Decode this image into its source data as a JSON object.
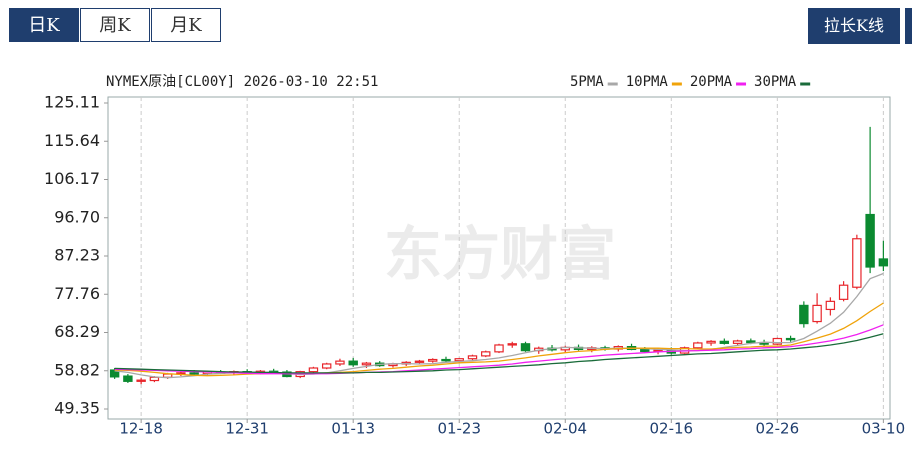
{
  "tabs": [
    "日K",
    "周K",
    "月K"
  ],
  "active_tab": 0,
  "button": "拉长K线",
  "chart_data": {
    "type": "candlestick",
    "title": "NYMEX原油[CL00Y] 2026-03-10 22:51",
    "watermark": "东方财富",
    "up_color": "#e8262b",
    "down_color": "#0b8a30",
    "ylim": [
      49.35,
      125.11
    ],
    "yticks": [
      49.35,
      58.82,
      68.29,
      77.76,
      87.23,
      {
        "value": 96.7,
        "label": "96.70"
      },
      106.17,
      115.64,
      125.11
    ],
    "categories": [
      null,
      null,
      "12-18",
      null,
      null,
      null,
      null,
      null,
      null,
      null,
      "12-31",
      null,
      null,
      null,
      null,
      null,
      null,
      null,
      "01-13",
      null,
      null,
      null,
      null,
      null,
      null,
      null,
      "01-23",
      null,
      null,
      null,
      null,
      null,
      null,
      null,
      "02-04",
      null,
      null,
      null,
      null,
      null,
      null,
      null,
      "02-16",
      null,
      null,
      null,
      null,
      null,
      null,
      null,
      "02-26",
      null,
      null,
      null,
      null,
      null,
      null,
      null,
      "03-10"
    ],
    "ohlc": [
      [
        59,
        59.5,
        56.8,
        57.3
      ],
      [
        57.5,
        58,
        55.8,
        56.2
      ],
      [
        56.2,
        57,
        55.5,
        56.5
      ],
      [
        56.4,
        57.5,
        56,
        57.2
      ],
      [
        57.2,
        58.3,
        56.8,
        58
      ],
      [
        58,
        58.6,
        57.5,
        58.3
      ],
      [
        58.3,
        59,
        57.8,
        58.1
      ],
      [
        58.1,
        58.8,
        57.6,
        58.5
      ],
      [
        58.5,
        59,
        58,
        58.3
      ],
      [
        58.3,
        58.9,
        57.8,
        58.6
      ],
      [
        58.6,
        59.2,
        58,
        58.4
      ],
      [
        58.4,
        59,
        57.9,
        58.7
      ],
      [
        58.7,
        59.3,
        58.2,
        58.5
      ],
      [
        58.5,
        59,
        57.2,
        57.4
      ],
      [
        57.4,
        58.8,
        57,
        58.6
      ],
      [
        58.6,
        59.8,
        58.2,
        59.5
      ],
      [
        59.5,
        60.8,
        59.2,
        60.5
      ],
      [
        60.5,
        61.8,
        60,
        61.2
      ],
      [
        61.2,
        62,
        59.8,
        60.3
      ],
      [
        60.3,
        61,
        59.5,
        60.7
      ],
      [
        60.7,
        61.2,
        59.8,
        60.1
      ],
      [
        60.1,
        60.8,
        59.6,
        60.5
      ],
      [
        60.5,
        61.2,
        60,
        60.9
      ],
      [
        60.9,
        61.5,
        60.4,
        61.2
      ],
      [
        61.2,
        61.9,
        60.8,
        61.6
      ],
      [
        61.6,
        62.3,
        61,
        61.3
      ],
      [
        61.3,
        62,
        60.9,
        61.8
      ],
      [
        61.8,
        62.8,
        61.4,
        62.5
      ],
      [
        62.5,
        63.8,
        62.2,
        63.5
      ],
      [
        63.5,
        65.5,
        63.2,
        65.2
      ],
      [
        65.2,
        66,
        64.5,
        65.5
      ],
      [
        65.5,
        66,
        63.5,
        63.8
      ],
      [
        63.8,
        64.8,
        63,
        64.4
      ],
      [
        64.4,
        65.2,
        63.6,
        64
      ],
      [
        64,
        65,
        63.2,
        64.6
      ],
      [
        64.6,
        65.3,
        63.8,
        64.1
      ],
      [
        64.1,
        64.9,
        63.4,
        64.5
      ],
      [
        64.5,
        65,
        63.8,
        64.2
      ],
      [
        64.2,
        65.1,
        63.6,
        64.8
      ],
      [
        64.8,
        65.5,
        63.9,
        64.1
      ],
      [
        64.1,
        64.7,
        63.2,
        63.6
      ],
      [
        63.6,
        64.3,
        62.9,
        63.9
      ],
      [
        63.9,
        64.6,
        62.8,
        63.2
      ],
      [
        63.2,
        64.8,
        63,
        64.5
      ],
      [
        64.5,
        66,
        64.2,
        65.7
      ],
      [
        65.7,
        66.4,
        65,
        66.1
      ],
      [
        66.1,
        66.8,
        65.3,
        65.6
      ],
      [
        65.6,
        66.5,
        65,
        66.2
      ],
      [
        66.2,
        66.8,
        65.4,
        65.8
      ],
      [
        65.8,
        66.5,
        65,
        65.4
      ],
      [
        65.4,
        67,
        65.2,
        66.8
      ],
      [
        66.8,
        67.5,
        66,
        66.5
      ],
      [
        75,
        76,
        69.5,
        70.5
      ],
      [
        71,
        78,
        70.5,
        75
      ],
      [
        74,
        77,
        72.5,
        76
      ],
      [
        76.5,
        81,
        76,
        80
      ],
      [
        79.5,
        92.5,
        79,
        91.5
      ],
      [
        97.5,
        119.2,
        83,
        84.5
      ],
      [
        86.5,
        91,
        83.5,
        84.8
      ]
    ],
    "series": [
      {
        "name": "5PMA",
        "color": "#a8a8a8",
        "values": [
          58.8,
          58.4,
          57.8,
          57.3,
          57.1,
          57.3,
          57.6,
          58,
          58.2,
          58.3,
          58.4,
          58.4,
          58.4,
          58.1,
          57.9,
          58,
          58.3,
          58.8,
          59.4,
          59.9,
          60.4,
          60.6,
          60.6,
          60.5,
          60.6,
          60.9,
          61.1,
          61.3,
          61.6,
          62,
          62.6,
          63.3,
          63.9,
          64.3,
          64.6,
          64.5,
          64.4,
          64.3,
          64.4,
          64.4,
          64.3,
          64.1,
          64,
          63.8,
          63.8,
          64.1,
          64.6,
          65.1,
          65.6,
          65.9,
          65.8,
          65.8,
          66.8,
          68.6,
          70.6,
          73.3,
          77.2,
          81.6,
          82.9
        ]
      },
      {
        "name": "10PMA",
        "color": "#f0a30a",
        "values": [
          59,
          58.9,
          58.7,
          58.4,
          58.1,
          57.9,
          57.7,
          57.6,
          57.7,
          57.8,
          58,
          58.1,
          58.2,
          58.2,
          58.2,
          58.2,
          58.3,
          58.4,
          58.6,
          58.9,
          59.2,
          59.4,
          59.7,
          60,
          60.2,
          60.5,
          60.8,
          60.9,
          61,
          61.2,
          61.6,
          62,
          62.5,
          62.9,
          63.3,
          63.6,
          63.8,
          64.1,
          64.3,
          64.4,
          64.4,
          64.4,
          64.3,
          64.3,
          64.2,
          64.2,
          64.4,
          64.6,
          64.7,
          64.9,
          64.9,
          65.2,
          66,
          66.9,
          67.9,
          69.3,
          71.2,
          73.5,
          75.6
        ]
      },
      {
        "name": "20PMA",
        "color": "#f020f0",
        "values": [
          59.2,
          59.1,
          59,
          58.9,
          58.8,
          58.7,
          58.6,
          58.5,
          58.4,
          58.3,
          58.2,
          58.1,
          58.1,
          58.1,
          58.1,
          58.1,
          58.1,
          58.2,
          58.3,
          58.4,
          58.5,
          58.6,
          58.8,
          59,
          59.2,
          59.4,
          59.6,
          59.8,
          60,
          60.2,
          60.5,
          60.9,
          61.2,
          61.5,
          61.8,
          62.1,
          62.4,
          62.7,
          62.9,
          63.1,
          63.3,
          63.5,
          63.6,
          63.7,
          63.8,
          63.9,
          64,
          64.2,
          64.3,
          64.5,
          64.6,
          64.8,
          65.2,
          65.7,
          66.2,
          66.9,
          67.8,
          68.9,
          70.2
        ]
      },
      {
        "name": "30PMA",
        "color": "#1a6b3a",
        "values": [
          59.4,
          59.3,
          59.2,
          59.1,
          59,
          58.9,
          58.8,
          58.7,
          58.6,
          58.5,
          58.5,
          58.4,
          58.4,
          58.3,
          58.3,
          58.3,
          58.3,
          58.3,
          58.3,
          58.4,
          58.4,
          58.5,
          58.6,
          58.7,
          58.8,
          59,
          59.1,
          59.3,
          59.5,
          59.7,
          59.9,
          60.1,
          60.3,
          60.6,
          60.8,
          61.1,
          61.3,
          61.6,
          61.8,
          62,
          62.2,
          62.4,
          62.6,
          62.8,
          63,
          63.1,
          63.3,
          63.5,
          63.7,
          63.9,
          64,
          64.2,
          64.5,
          64.8,
          65.2,
          65.7,
          66.3,
          67.1,
          68
        ]
      }
    ]
  }
}
